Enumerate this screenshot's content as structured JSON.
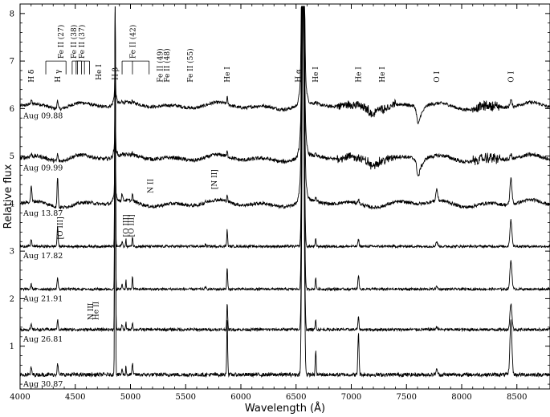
{
  "chart_data": {
    "type": "line",
    "title": "",
    "xlabel": "Wavelength (Å)",
    "ylabel": "Relative flux",
    "xlim": [
      4000,
      8800
    ],
    "ylim": [
      0.1,
      8.2
    ],
    "x_ticks": [
      4000,
      4500,
      5000,
      5500,
      6000,
      6500,
      7000,
      7500,
      8000,
      8500
    ],
    "y_ticks": [
      1,
      2,
      3,
      4,
      5,
      6,
      7,
      8
    ],
    "series": [
      {
        "name": "Aug 09.88",
        "baseline": 6.05,
        "noise": 0.035,
        "telluric": true
      },
      {
        "name": "Aug 09.99",
        "baseline": 4.95,
        "noise": 0.04,
        "telluric": true
      },
      {
        "name": "Aug 13.87",
        "baseline": 4.0,
        "noise": 0.035,
        "telluric": false
      },
      {
        "name": "Aug 17.82",
        "baseline": 3.1,
        "noise": 0.025,
        "telluric": false
      },
      {
        "name": "Aug 21.91",
        "baseline": 2.2,
        "noise": 0.025,
        "telluric": false
      },
      {
        "name": "Aug 26.81",
        "baseline": 1.35,
        "noise": 0.03,
        "telluric": false
      },
      {
        "name": "Aug 30.87",
        "baseline": 0.4,
        "noise": 0.04,
        "telluric": false
      }
    ],
    "emission_lines": [
      {
        "id": "Hdelta",
        "x": 4101,
        "amp": [
          0.1,
          0.05,
          0.35,
          0.15,
          0.1,
          0.1,
          0.15
        ],
        "width": 5
      },
      {
        "id": "Hgamma",
        "x": 4340,
        "amp": [
          0.2,
          0.15,
          0.65,
          0.4,
          0.25,
          0.2,
          0.25
        ],
        "width": 5
      },
      {
        "id": "FeII4924",
        "x": 4924,
        "amp": [
          0.05,
          0.05,
          0.15,
          0.1,
          0.1,
          0.1,
          0.1
        ],
        "width": 5
      },
      {
        "id": "OIII4959",
        "x": 4959,
        "amp": [
          0.0,
          0.0,
          0.0,
          0.15,
          0.2,
          0.15,
          0.2
        ],
        "width": 3
      },
      {
        "id": "FeII5018",
        "x": 5018,
        "amp": [
          0.05,
          0.05,
          0.15,
          0.2,
          0.25,
          0.15,
          0.25
        ],
        "width": 4
      },
      {
        "id": "NII5679",
        "x": 5679,
        "amp": [
          0.0,
          0.0,
          0.05,
          0.05,
          0.05,
          0.0,
          0.0
        ],
        "width": 4
      },
      {
        "id": "HeI5876",
        "x": 5876,
        "amp": [
          0.15,
          0.1,
          0.15,
          0.35,
          0.45,
          0.55,
          1.2
        ],
        "width": 4
      },
      {
        "id": "HeI6678",
        "x": 6678,
        "amp": [
          0.05,
          0.05,
          0.1,
          0.15,
          0.25,
          0.2,
          0.5
        ],
        "width": 4
      },
      {
        "id": "HeI7065",
        "x": 7065,
        "amp": [
          0.05,
          0.05,
          0.1,
          0.15,
          0.3,
          0.25,
          0.9
        ],
        "width": 5
      },
      {
        "id": "OI7774",
        "x": 7774,
        "amp": [
          0.0,
          0.0,
          0.25,
          0.1,
          0.05,
          0.05,
          0.1
        ],
        "width": 8
      },
      {
        "id": "OI8446",
        "x": 8446,
        "amp": [
          0.15,
          0.1,
          0.55,
          0.55,
          0.6,
          0.55,
          1.15
        ],
        "width": 9
      }
    ],
    "hbeta": {
      "x": 4861,
      "amp": [
        0.75,
        0.85,
        1.25,
        4.1,
        5.8,
        8.6,
        10.0
      ],
      "width": 3.5
    },
    "halpha": {
      "x": 6563,
      "amp": [
        6.85,
        5.9,
        6.8,
        7.5,
        7.5,
        7.5,
        8.5
      ],
      "width": 9
    },
    "date_labels": [
      "Aug 09.88",
      "Aug 09.99",
      "Aug 13.87",
      "Aug 17.82",
      "Aug 21.91",
      "Aug 26.81",
      "Aug 30.87"
    ],
    "annotations": {
      "top": [
        {
          "text": "H δ",
          "x": 4101,
          "y": 6.55
        },
        {
          "text": "H γ",
          "x": 4340,
          "y": 6.55
        },
        {
          "text": "He I",
          "x": 4713,
          "y": 6.6
        },
        {
          "text": "H β",
          "x": 4861,
          "y": 6.6
        },
        {
          "text": "He I",
          "x": 5876,
          "y": 6.55
        },
        {
          "text": "H α",
          "x": 6520,
          "y": 6.55
        },
        {
          "text": "He I",
          "x": 6678,
          "y": 6.55
        },
        {
          "text": "He I",
          "x": 7065,
          "y": 6.55
        },
        {
          "text": "He I",
          "x": 7281,
          "y": 6.55
        },
        {
          "text": "O I",
          "x": 7774,
          "y": 6.55
        },
        {
          "text": "O I",
          "x": 8446,
          "y": 6.55
        }
      ],
      "fe_groups": [
        {
          "text": "Fe II (27)",
          "x": 4370,
          "lines": [
            4233,
            4416
          ]
        },
        {
          "text": "Fe II (38)",
          "x": 4487,
          "lines": [
            4508,
            4583,
            4629
          ]
        },
        {
          "text": "Fe II (37)",
          "x": 4560,
          "lines": [
            4472,
            4520,
            4556
          ]
        },
        {
          "text": "Fe II (42)",
          "x": 5020,
          "lines": [
            4924,
            5018,
            5169
          ]
        }
      ],
      "fe_labels": [
        {
          "text": "Fe II (49)",
          "x": 5270
        },
        {
          "text": "Fe II (48)",
          "x": 5330
        },
        {
          "text": "Fe II (55)",
          "x": 5540
        }
      ],
      "mid": [
        {
          "text": "N II",
          "x": 5180,
          "y": 4.22
        },
        {
          "text": "[N II]",
          "x": 5760,
          "y": 4.3
        },
        {
          "text": "[O III]",
          "x": 4363,
          "y": 3.25
        },
        {
          "text": "[O III]",
          "x": 4959,
          "y": 3.3
        },
        {
          "text": "[O III]",
          "x": 5007,
          "y": 3.3
        },
        {
          "text": "N III",
          "x": 4640,
          "y": 1.55
        },
        {
          "text": "He II",
          "x": 4686,
          "y": 1.55
        }
      ]
    }
  }
}
